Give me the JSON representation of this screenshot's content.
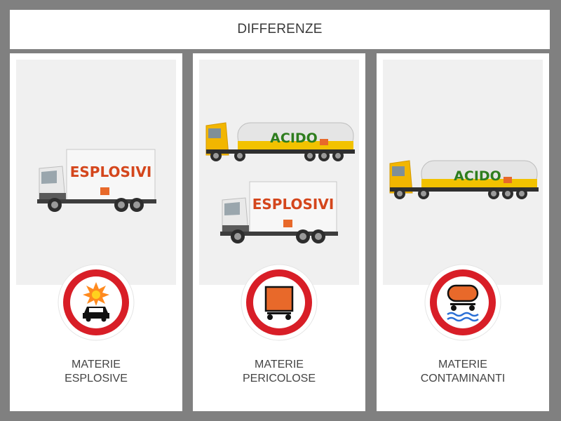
{
  "header": {
    "title": "DIFFERENZE"
  },
  "cards": [
    {
      "truck_text": "ESPLOSIVI",
      "label_line1": "MATERIE",
      "label_line2": "ESPLOSIVE",
      "sign": "no-explosives-sign-icon"
    },
    {
      "tanker_text": "ACIDO",
      "truck_text": "ESPLOSIVI",
      "label_line1": "MATERIE",
      "label_line2": "PERICOLOSE",
      "sign": "no-dangerous-goods-sign-icon"
    },
    {
      "tanker_text": "ACIDO",
      "label_line1": "MATERIE",
      "label_line2": "CONTAMINANTI",
      "sign": "no-water-pollutants-sign-icon"
    }
  ],
  "colors": {
    "sign_red": "#d81e27",
    "plate_orange": "#e8692a",
    "explosivi_text": "#d4461c",
    "acido_text": "#2e7d1e",
    "cab_yellow": "#f2b600"
  }
}
